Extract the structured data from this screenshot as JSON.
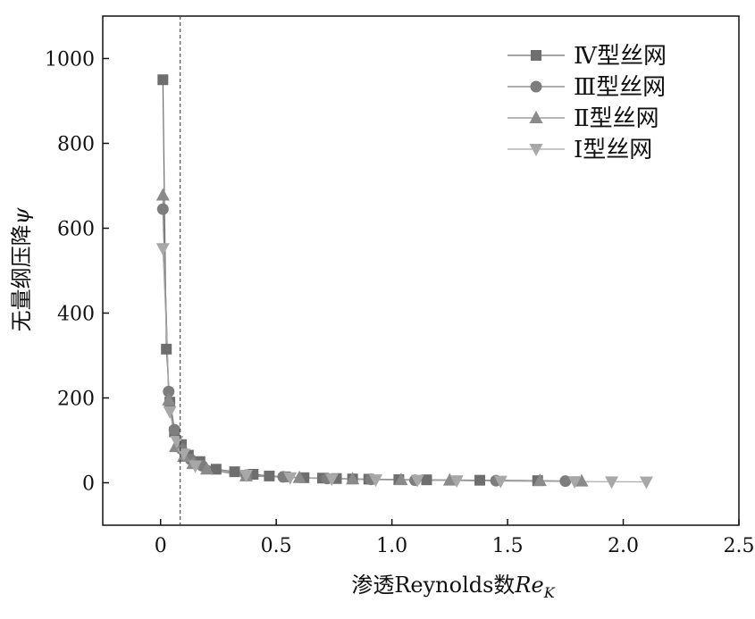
{
  "chart_data": {
    "type": "scatter",
    "xlabel": "渗透Reynolds数",
    "xlabel_symbol": "Re",
    "xlabel_subscript": "K",
    "ylabel": "无量纲压降",
    "ylabel_symbol": "ψ",
    "xlim": [
      -0.25,
      2.5
    ],
    "ylim": [
      -100,
      1100
    ],
    "xticks": [
      {
        "value": 0,
        "label": "0"
      },
      {
        "value": 0.5,
        "label": "0.5"
      },
      {
        "value": 1.0,
        "label": "1.0"
      },
      {
        "value": 1.5,
        "label": "1.5"
      },
      {
        "value": 2.0,
        "label": "2.0"
      },
      {
        "value": 2.5,
        "label": "2.5"
      }
    ],
    "yticks": [
      {
        "value": 0,
        "label": "0"
      },
      {
        "value": 200,
        "label": "200"
      },
      {
        "value": 400,
        "label": "400"
      },
      {
        "value": 600,
        "label": "600"
      },
      {
        "value": 800,
        "label": "800"
      },
      {
        "value": 1000,
        "label": "1000"
      }
    ],
    "reference_line": {
      "x": 0.085,
      "style": "dashed"
    },
    "grid": false,
    "legend_position": "top-right",
    "series": [
      {
        "name": "Ⅳ型丝网",
        "marker": "square",
        "color": "#6e6e6e",
        "x": [
          0.01,
          0.025,
          0.04,
          0.06,
          0.09,
          0.12,
          0.17,
          0.24,
          0.32,
          0.4,
          0.47,
          0.54,
          0.62,
          0.7,
          0.76,
          0.83,
          0.9,
          1.03,
          1.15,
          1.38,
          1.63
        ],
        "y": [
          950,
          315,
          190,
          120,
          90,
          65,
          50,
          32,
          26,
          20,
          16,
          14,
          12,
          11,
          10,
          9,
          8.5,
          7.5,
          7,
          6,
          5
        ]
      },
      {
        "name": "Ⅲ型丝网",
        "marker": "circle",
        "color": "#7d7d7d",
        "x": [
          0.01,
          0.035,
          0.06,
          0.09,
          0.13,
          0.18,
          0.37,
          0.53,
          0.72,
          0.91,
          1.1,
          1.45,
          1.75
        ],
        "y": [
          645,
          215,
          125,
          80,
          55,
          40,
          18,
          14,
          10,
          8,
          6,
          5,
          4
        ]
      },
      {
        "name": "Ⅱ型丝网",
        "marker": "triangle-up",
        "color": "#8a8a8a",
        "x": [
          0.01,
          0.035,
          0.065,
          0.1,
          0.14,
          0.2,
          0.37,
          0.6,
          0.83,
          1.04,
          1.25,
          1.64,
          1.82
        ],
        "y": [
          678,
          195,
          85,
          62,
          45,
          32,
          16,
          12,
          9,
          7,
          6,
          5,
          4
        ]
      },
      {
        "name": "Ⅰ型丝网",
        "marker": "triangle-down",
        "color": "#a8a8a8",
        "x": [
          0.01,
          0.04,
          0.07,
          0.1,
          0.15,
          0.37,
          0.56,
          0.74,
          0.93,
          1.11,
          1.28,
          1.47,
          1.79,
          1.95,
          2.1
        ],
        "y": [
          552,
          168,
          98,
          68,
          40,
          18,
          12,
          9,
          7,
          6,
          5,
          4,
          3,
          2.5,
          2
        ]
      }
    ]
  }
}
